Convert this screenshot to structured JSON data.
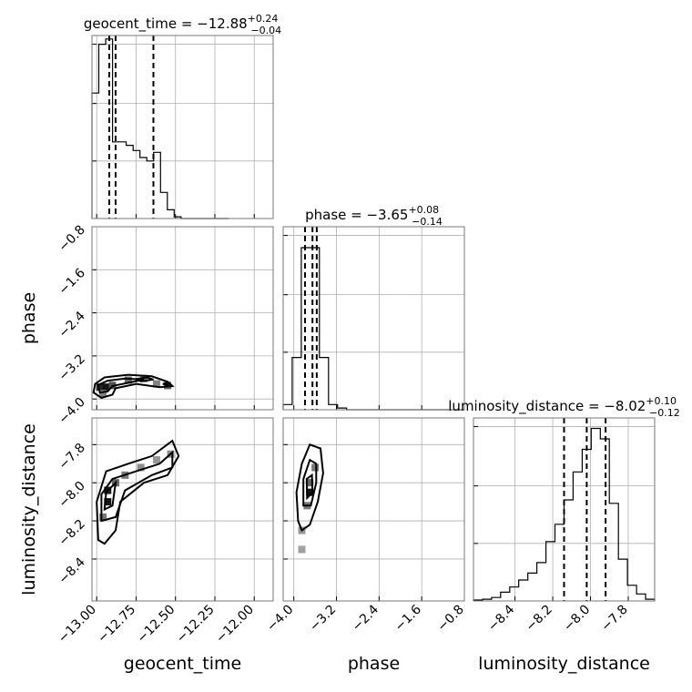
{
  "chart_data": {
    "type": "corner",
    "parameters": [
      {
        "key": "geocent_time",
        "label": "geocent_time",
        "median": "−12.88",
        "err_plus": "+0.24",
        "err_minus": "−0.04",
        "title_prefix": "geocent_time = −12.88",
        "range": [
          -13.03,
          -11.88
        ],
        "ticks": [
          -13.0,
          -12.75,
          -12.5,
          -12.25,
          -12.0
        ],
        "tick_labels": [
          "−13.00",
          "−12.75",
          "−12.50",
          "−12.25",
          "−12.00"
        ],
        "quantiles": [
          -12.92,
          -12.88,
          -12.64
        ],
        "hist_edges": [
          -13.03,
          -12.9865,
          -12.943,
          -12.8995,
          -12.856,
          -12.8125,
          -12.769,
          -12.7255,
          -12.682,
          -12.6385,
          -12.595,
          -12.5515,
          -12.508,
          -12.4645,
          -12.421,
          -12.3775,
          -12.334,
          -12.2905,
          -12.247,
          -12.2035,
          -12.16
        ],
        "hist_counts": [
          0.72,
          1.0,
          1.03,
          0.44,
          0.44,
          0.42,
          0.39,
          0.35,
          0.33,
          0.38,
          0.15,
          0.05,
          0.01,
          0,
          0,
          0,
          0,
          0,
          0,
          0
        ]
      },
      {
        "key": "phase",
        "label": "phase",
        "median": "−3.65",
        "err_plus": "+0.08",
        "err_minus": "−0.14",
        "title_prefix": "phase = −3.65",
        "range": [
          -4.2,
          -0.8
        ],
        "ticks": [
          -4.0,
          -3.2,
          -2.4,
          -1.6,
          -0.8
        ],
        "tick_labels": [
          "−4.0",
          "−3.2",
          "−2.4",
          "−1.6",
          "−0.8"
        ],
        "quantiles": [
          -3.79,
          -3.65,
          -3.57
        ],
        "hist_edges": [
          -4.2,
          -4.03,
          -3.86,
          -3.69,
          -3.52,
          -3.35,
          -3.18,
          -3.01,
          -2.84,
          -2.67,
          -2.5,
          -2.33,
          -2.16,
          -1.99,
          -1.82,
          -1.65,
          -1.48,
          -1.31,
          -1.14,
          -0.97,
          -0.8
        ],
        "hist_counts": [
          0.03,
          0.3,
          0.93,
          0.93,
          0.3,
          0.03,
          0.01,
          0,
          0,
          0,
          0,
          0,
          0,
          0,
          0,
          0,
          0,
          0,
          0,
          0
        ]
      },
      {
        "key": "luminosity_distance",
        "label": "luminosity_distance",
        "median": "−8.02",
        "err_plus": "+0.10",
        "err_minus": "−0.12",
        "title_prefix": "luminosity_distance = −8.02",
        "range": [
          -8.62,
          -7.66
        ],
        "ticks": [
          -8.4,
          -8.2,
          -8.0,
          -7.8
        ],
        "tick_labels": [
          "−8.4",
          "−8.2",
          "−8.0",
          "−7.8"
        ],
        "quantiles": [
          -8.14,
          -8.02,
          -7.92
        ],
        "hist_edges": [
          -8.62,
          -8.572,
          -8.524,
          -8.476,
          -8.428,
          -8.38,
          -8.332,
          -8.284,
          -8.236,
          -8.188,
          -8.14,
          -8.092,
          -8.044,
          -7.996,
          -7.948,
          -7.9,
          -7.852,
          -7.804,
          -7.756,
          -7.708,
          -7.66
        ],
        "hist_counts": [
          0.005,
          0.01,
          0.02,
          0.05,
          0.08,
          0.12,
          0.16,
          0.22,
          0.34,
          0.44,
          0.58,
          0.74,
          0.87,
          0.99,
          0.93,
          0.56,
          0.24,
          0.09,
          0.04,
          0.01
        ]
      }
    ],
    "hist_ylim": [
      0,
      1.05
    ],
    "hist_yticks": [
      0.33,
      0.66,
      1.0
    ],
    "grid": true,
    "pairs": [
      {
        "x": "geocent_time",
        "y": "phase",
        "density_cells": [
          {
            "x": -12.98,
            "y": -3.78,
            "v": 0.9
          },
          {
            "x": -12.94,
            "y": -3.78,
            "v": 1.0
          },
          {
            "x": -12.9,
            "y": -3.75,
            "v": 0.7
          },
          {
            "x": -12.8,
            "y": -3.65,
            "v": 0.55
          },
          {
            "x": -12.7,
            "y": -3.62,
            "v": 0.5
          },
          {
            "x": -12.62,
            "y": -3.72,
            "v": 0.45
          },
          {
            "x": -12.55,
            "y": -3.75,
            "v": 0.6
          },
          {
            "x": -12.96,
            "y": -3.9,
            "v": 0.45
          }
        ],
        "contours": [
          [
            [
              -13.01,
              -3.72
            ],
            [
              -12.95,
              -3.6
            ],
            [
              -12.8,
              -3.55
            ],
            [
              -12.65,
              -3.58
            ],
            [
              -12.55,
              -3.68
            ],
            [
              -12.52,
              -3.76
            ],
            [
              -12.6,
              -3.78
            ],
            [
              -12.75,
              -3.72
            ],
            [
              -12.88,
              -3.8
            ],
            [
              -12.9,
              -3.92
            ],
            [
              -12.97,
              -3.98
            ],
            [
              -13.02,
              -3.88
            ],
            [
              -13.01,
              -3.72
            ]
          ],
          [
            [
              -12.99,
              -3.74
            ],
            [
              -12.93,
              -3.66
            ],
            [
              -12.82,
              -3.62
            ],
            [
              -12.7,
              -3.64
            ],
            [
              -12.8,
              -3.7
            ],
            [
              -12.9,
              -3.76
            ],
            [
              -12.93,
              -3.86
            ],
            [
              -12.98,
              -3.88
            ],
            [
              -12.99,
              -3.74
            ]
          ],
          [
            [
              -12.75,
              -3.63
            ],
            [
              -12.68,
              -3.6
            ],
            [
              -12.64,
              -3.64
            ],
            [
              -12.72,
              -3.67
            ],
            [
              -12.75,
              -3.63
            ]
          ],
          [
            [
              -12.58,
              -3.72
            ],
            [
              -12.54,
              -3.7
            ],
            [
              -12.53,
              -3.76
            ],
            [
              -12.58,
              -3.72
            ]
          ]
        ]
      },
      {
        "x": "geocent_time",
        "y": "luminosity_distance",
        "density_cells": [
          {
            "x": -12.93,
            "y": -8.04,
            "v": 0.95
          },
          {
            "x": -12.93,
            "y": -8.1,
            "v": 1.0
          },
          {
            "x": -12.88,
            "y": -8.0,
            "v": 0.6
          },
          {
            "x": -12.82,
            "y": -7.96,
            "v": 0.5
          },
          {
            "x": -12.72,
            "y": -7.92,
            "v": 0.4
          },
          {
            "x": -12.62,
            "y": -7.88,
            "v": 0.35
          },
          {
            "x": -12.53,
            "y": -7.85,
            "v": 0.4
          },
          {
            "x": -12.96,
            "y": -8.18,
            "v": 0.5
          }
        ],
        "contours": [
          [
            [
              -12.99,
              -8.3
            ],
            [
              -13.0,
              -8.1
            ],
            [
              -12.94,
              -7.94
            ],
            [
              -12.8,
              -7.9
            ],
            [
              -12.65,
              -7.86
            ],
            [
              -12.52,
              -7.78
            ],
            [
              -12.48,
              -7.86
            ],
            [
              -12.55,
              -7.96
            ],
            [
              -12.7,
              -8.0
            ],
            [
              -12.85,
              -8.1
            ],
            [
              -12.88,
              -8.25
            ],
            [
              -12.95,
              -8.32
            ],
            [
              -12.99,
              -8.3
            ]
          ],
          [
            [
              -12.97,
              -8.2
            ],
            [
              -12.97,
              -8.06
            ],
            [
              -12.9,
              -7.98
            ],
            [
              -12.75,
              -7.94
            ],
            [
              -12.6,
              -7.9
            ],
            [
              -12.52,
              -7.84
            ],
            [
              -12.52,
              -7.92
            ],
            [
              -12.65,
              -7.96
            ],
            [
              -12.82,
              -8.04
            ],
            [
              -12.88,
              -8.18
            ],
            [
              -12.97,
              -8.2
            ]
          ],
          [
            [
              -12.95,
              -8.14
            ],
            [
              -12.94,
              -8.05
            ],
            [
              -12.88,
              -8.0
            ],
            [
              -12.9,
              -8.12
            ],
            [
              -12.95,
              -8.14
            ]
          ]
        ]
      },
      {
        "x": "phase",
        "y": "luminosity_distance",
        "density_cells": [
          {
            "x": -3.7,
            "y": -8.0,
            "v": 0.6
          },
          {
            "x": -3.7,
            "y": -8.05,
            "v": 1.0
          },
          {
            "x": -3.6,
            "y": -7.92,
            "v": 0.5
          },
          {
            "x": -3.75,
            "y": -8.12,
            "v": 0.5
          },
          {
            "x": -3.85,
            "y": -8.25,
            "v": 0.35
          },
          {
            "x": -3.85,
            "y": -8.35,
            "v": 0.3
          }
        ],
        "contours": [
          [
            [
              -3.92,
              -8.2
            ],
            [
              -3.95,
              -8.05
            ],
            [
              -3.85,
              -7.9
            ],
            [
              -3.7,
              -7.8
            ],
            [
              -3.5,
              -7.82
            ],
            [
              -3.45,
              -7.95
            ],
            [
              -3.55,
              -8.1
            ],
            [
              -3.7,
              -8.22
            ],
            [
              -3.85,
              -8.25
            ],
            [
              -3.92,
              -8.2
            ]
          ],
          [
            [
              -3.82,
              -8.12
            ],
            [
              -3.82,
              -7.98
            ],
            [
              -3.7,
              -7.88
            ],
            [
              -3.58,
              -7.9
            ],
            [
              -3.58,
              -8.0
            ],
            [
              -3.68,
              -8.12
            ],
            [
              -3.82,
              -8.12
            ]
          ],
          [
            [
              -3.75,
              -8.08
            ],
            [
              -3.76,
              -7.98
            ],
            [
              -3.66,
              -7.96
            ],
            [
              -3.65,
              -8.05
            ],
            [
              -3.75,
              -8.08
            ]
          ]
        ]
      }
    ]
  }
}
